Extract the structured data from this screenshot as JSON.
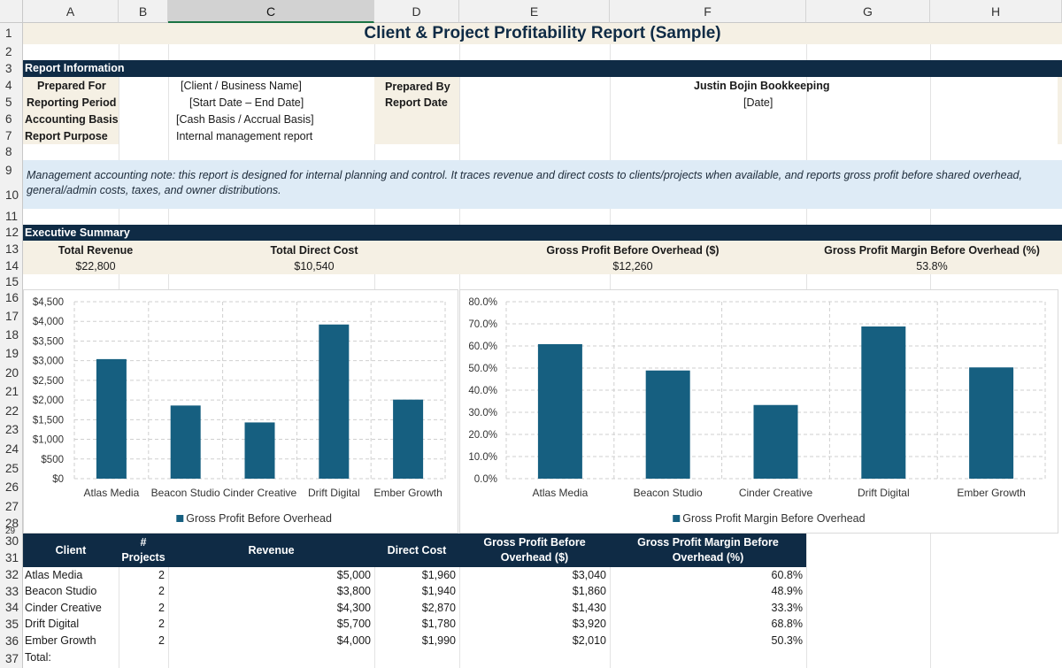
{
  "columns": [
    "A",
    "B",
    "C",
    "D",
    "E",
    "F",
    "G",
    "H"
  ],
  "rows": [
    "1",
    "2",
    "3",
    "4",
    "5",
    "6",
    "7",
    "8",
    "9",
    "10",
    "11",
    "12",
    "13",
    "14",
    "15",
    "16",
    "17",
    "18",
    "19",
    "20",
    "21",
    "22",
    "23",
    "24",
    "25",
    "26",
    "27",
    "28",
    "29",
    "30",
    "31",
    "32",
    "33",
    "34",
    "35",
    "36",
    "37"
  ],
  "title": "Client & Project Profitability Report (Sample)",
  "report_info": {
    "header": "Report Information",
    "prepared_for_label": "Prepared For",
    "prepared_for_value": "[Client / Business Name]",
    "reporting_period_label": "Reporting Period",
    "reporting_period_value": "[Start Date – End Date]",
    "accounting_basis_label": "Accounting Basis",
    "accounting_basis_value": "[Cash Basis / Accrual Basis]",
    "report_purpose_label": "Report Purpose",
    "report_purpose_value": "Internal management report",
    "prepared_by_label": "Prepared By",
    "prepared_by_value": "Justin Bojin Bookkeeping",
    "report_date_label": "Report Date",
    "report_date_value": "[Date]"
  },
  "note": "Management accounting note: this report is designed for internal planning and control. It traces revenue and direct costs to clients/projects when available, and reports gross profit before shared overhead, general/admin costs, taxes, and owner distributions.",
  "exec_summary": {
    "header": "Executive Summary",
    "total_revenue_label": "Total Revenue",
    "total_revenue_value": "$22,800",
    "total_direct_cost_label": "Total Direct Cost",
    "total_direct_cost_value": "$10,540",
    "gross_profit_label": "Gross Profit Before Overhead ($)",
    "gross_profit_value": "$12,260",
    "gross_margin_label": "Gross Profit Margin Before Overhead (%)",
    "gross_margin_value": "53.8%"
  },
  "chart_data": [
    {
      "type": "bar",
      "categories": [
        "Atlas Media",
        "Beacon Studio",
        "Cinder Creative",
        "Drift Digital",
        "Ember Growth"
      ],
      "series": [
        {
          "name": "Gross Profit Before Overhead",
          "values": [
            3040,
            1860,
            1430,
            3920,
            2010
          ]
        }
      ],
      "y_ticks": [
        "$0",
        "$500",
        "$1,000",
        "$1,500",
        "$2,000",
        "$2,500",
        "$3,000",
        "$3,500",
        "$4,000",
        "$4,500"
      ],
      "ylim": [
        0,
        4500
      ],
      "color": "#165f80",
      "legend": "bottom"
    },
    {
      "type": "bar",
      "categories": [
        "Atlas Media",
        "Beacon Studio",
        "Cinder Creative",
        "Drift Digital",
        "Ember Growth"
      ],
      "series": [
        {
          "name": "Gross Profit Margin Before Overhead",
          "values": [
            60.8,
            48.9,
            33.3,
            68.8,
            50.3
          ]
        }
      ],
      "y_ticks": [
        "0.0%",
        "10.0%",
        "20.0%",
        "30.0%",
        "40.0%",
        "50.0%",
        "60.0%",
        "70.0%",
        "80.0%"
      ],
      "ylim": [
        0,
        80
      ],
      "color": "#165f80",
      "legend": "bottom"
    }
  ],
  "table": {
    "headers": [
      "Client",
      "# Projects",
      "Revenue",
      "Direct Cost",
      "Gross Profit Before Overhead ($)",
      "Gross Profit Margin Before Overhead (%)"
    ],
    "rows": [
      [
        "Atlas Media",
        "2",
        "$5,000",
        "$1,960",
        "$3,040",
        "60.8%"
      ],
      [
        "Beacon Studio",
        "2",
        "$3,800",
        "$1,940",
        "$1,860",
        "48.9%"
      ],
      [
        "Cinder Creative",
        "2",
        "$4,300",
        "$2,870",
        "$1,430",
        "33.3%"
      ],
      [
        "Drift Digital",
        "2",
        "$5,700",
        "$1,780",
        "$3,920",
        "68.8%"
      ],
      [
        "Ember Growth",
        "2",
        "$4,000",
        "$1,990",
        "$2,010",
        "50.3%"
      ]
    ],
    "total_label": "Total:"
  }
}
